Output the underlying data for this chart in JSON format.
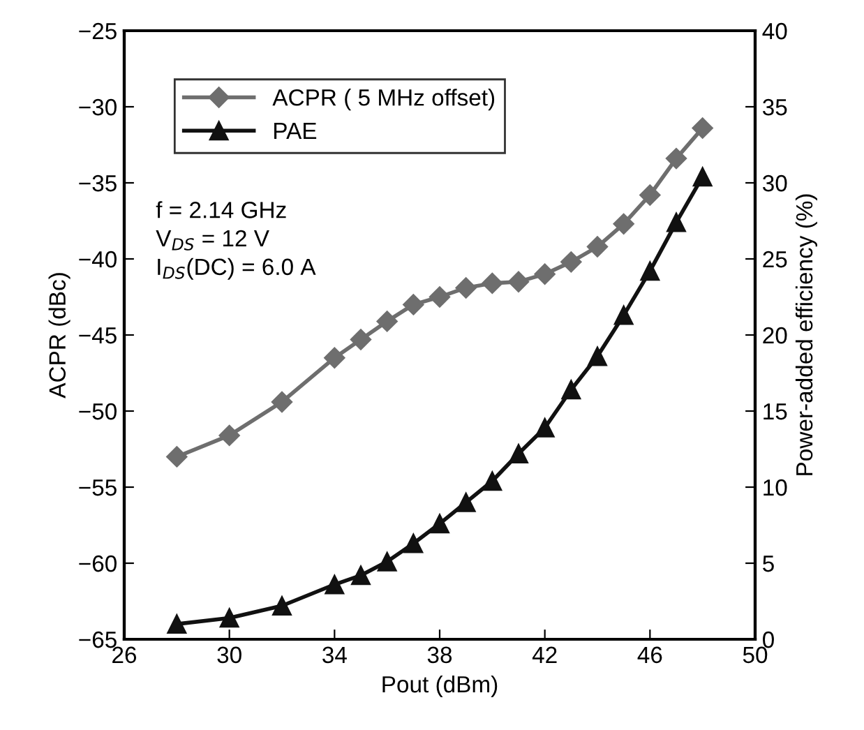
{
  "chart_data": {
    "type": "line",
    "xlabel": "Pout (dBm)",
    "ylabel": "ACPR (dBc)",
    "y2label": "Power-added efficiency (%)",
    "x": [
      28,
      30,
      32,
      34,
      35,
      36,
      37,
      38,
      39,
      40,
      41,
      42,
      43,
      44,
      45,
      46,
      47,
      48
    ],
    "series": [
      {
        "name": "ACPR ( 5 MHz offset)",
        "color": "#6e6e6e",
        "marker": "diamond",
        "values": [
          -53.0,
          -51.6,
          -49.4,
          -46.5,
          -45.3,
          -44.1,
          -43.0,
          -42.5,
          -41.9,
          -41.6,
          -41.5,
          -41.0,
          -40.2,
          -39.2,
          -37.7,
          -35.8,
          -33.4,
          -31.4
        ]
      },
      {
        "name": "PAE",
        "color": "#111111",
        "marker": "triangle",
        "axis": "y2",
        "values": [
          1.0,
          1.4,
          2.2,
          3.6,
          4.2,
          5.1,
          6.3,
          7.6,
          9.0,
          10.4,
          12.2,
          13.9,
          16.4,
          18.6,
          21.3,
          24.2,
          27.4,
          30.4
        ]
      }
    ],
    "xlim": [
      26,
      50
    ],
    "xticks": [
      26,
      30,
      34,
      38,
      42,
      46,
      50
    ],
    "ylim": [
      -65,
      -25
    ],
    "yticks": [
      -65,
      -60,
      -55,
      -50,
      -45,
      -40,
      -35,
      -30,
      -25
    ],
    "y2lim": [
      0,
      40
    ],
    "y2ticks": [
      0,
      5,
      10,
      15,
      20,
      25,
      30,
      35,
      40
    ],
    "annotations": [
      "f = 2.14 GHz\nV$_{DS}$ = 12 V\nI$_{DS}$(DC) = 6.0 A"
    ],
    "legend": "top left",
    "grid": false
  }
}
